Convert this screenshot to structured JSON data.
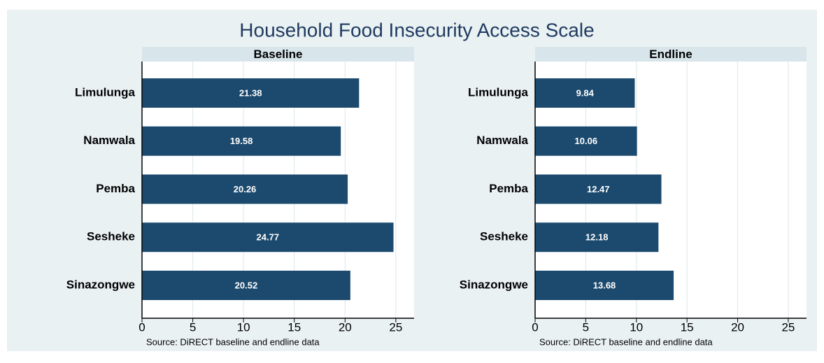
{
  "title": "Household Food Insecurity Access Scale",
  "chart_data": [
    {
      "type": "hbar",
      "title": "Baseline",
      "categories": [
        "Limulunga",
        "Namwala",
        "Pemba",
        "Sesheke",
        "Sinazongwe"
      ],
      "values": [
        21.38,
        19.58,
        20.26,
        24.77,
        20.52
      ],
      "color": "#1c4a6e",
      "xlim": [
        0,
        26.8
      ],
      "xticks": [
        0,
        5,
        10,
        15,
        20,
        25
      ],
      "grid": true,
      "note": "Source:  DiRECT baseline and endline data"
    },
    {
      "type": "hbar",
      "title": "Endline",
      "categories": [
        "Limulunga",
        "Namwala",
        "Pemba",
        "Sesheke",
        "Sinazongwe"
      ],
      "values": [
        9.84,
        10.06,
        12.47,
        12.18,
        13.68
      ],
      "color": "#1c4a6e",
      "xlim": [
        0,
        26.8
      ],
      "xticks": [
        0,
        5,
        10,
        15,
        20,
        25
      ],
      "grid": true,
      "note": "Source:  DiRECT baseline and endline data"
    }
  ]
}
